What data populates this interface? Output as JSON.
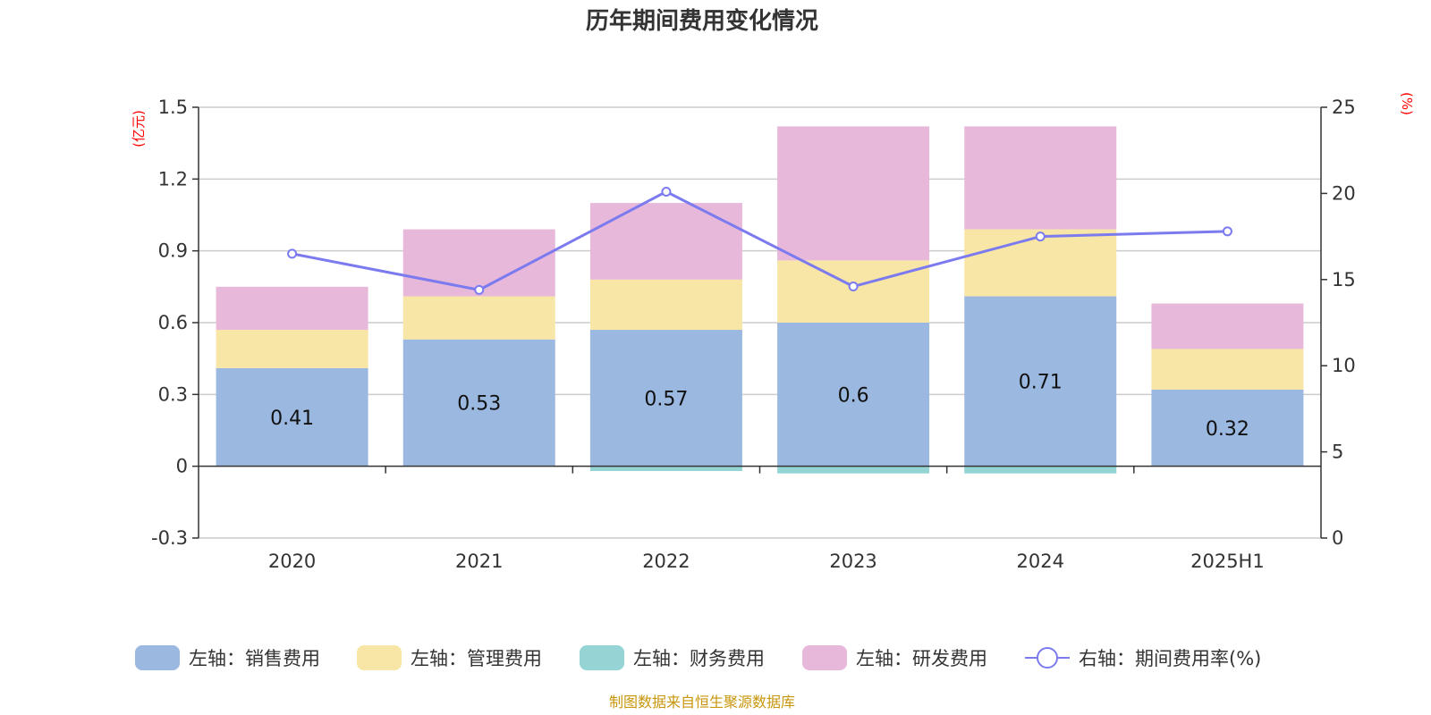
{
  "chart_data": {
    "type": "bar",
    "title": "历年期间费用变化情况",
    "categories": [
      "2020",
      "2021",
      "2022",
      "2023",
      "2024",
      "2025H1"
    ],
    "stacked": true,
    "left_axis": {
      "unit_label": "(亿元)",
      "ylim": [
        -0.3,
        1.5
      ],
      "ticks": [
        "-0.3",
        "0",
        "0.3",
        "0.6",
        "0.9",
        "1.2",
        "1.5"
      ]
    },
    "right_axis": {
      "unit_label": "(%)",
      "ylim": [
        0,
        25
      ],
      "ticks": [
        "0",
        "5",
        "10",
        "15",
        "20",
        "25"
      ]
    },
    "series": [
      {
        "name": "左轴：销售费用",
        "axis": "left",
        "type": "bar",
        "color": "#9bb8e0",
        "values": [
          0.41,
          0.53,
          0.57,
          0.6,
          0.71,
          0.32
        ],
        "labels": [
          "0.41",
          "0.53",
          "0.57",
          "0.6",
          "0.71",
          "0.32"
        ]
      },
      {
        "name": "左轴：管理费用",
        "axis": "left",
        "type": "bar",
        "color": "#f8e6a6",
        "values": [
          0.16,
          0.18,
          0.21,
          0.26,
          0.28,
          0.17
        ]
      },
      {
        "name": "左轴：财务费用",
        "axis": "left",
        "type": "bar",
        "color": "#94d4d4",
        "values": [
          0.0,
          0.0,
          -0.02,
          -0.03,
          -0.03,
          0.0
        ]
      },
      {
        "name": "左轴：研发费用",
        "axis": "left",
        "type": "bar",
        "color": "#e8b8da",
        "values": [
          0.18,
          0.28,
          0.32,
          0.56,
          0.43,
          0.19
        ]
      },
      {
        "name": "右轴：期间费用率(%)",
        "axis": "right",
        "type": "line",
        "color": "#7b7bef",
        "values": [
          16.5,
          14.4,
          20.1,
          14.6,
          17.5,
          17.8
        ]
      }
    ],
    "legend_position": "bottom",
    "grid": true
  },
  "source_note": "制图数据来自恒生聚源数据库"
}
